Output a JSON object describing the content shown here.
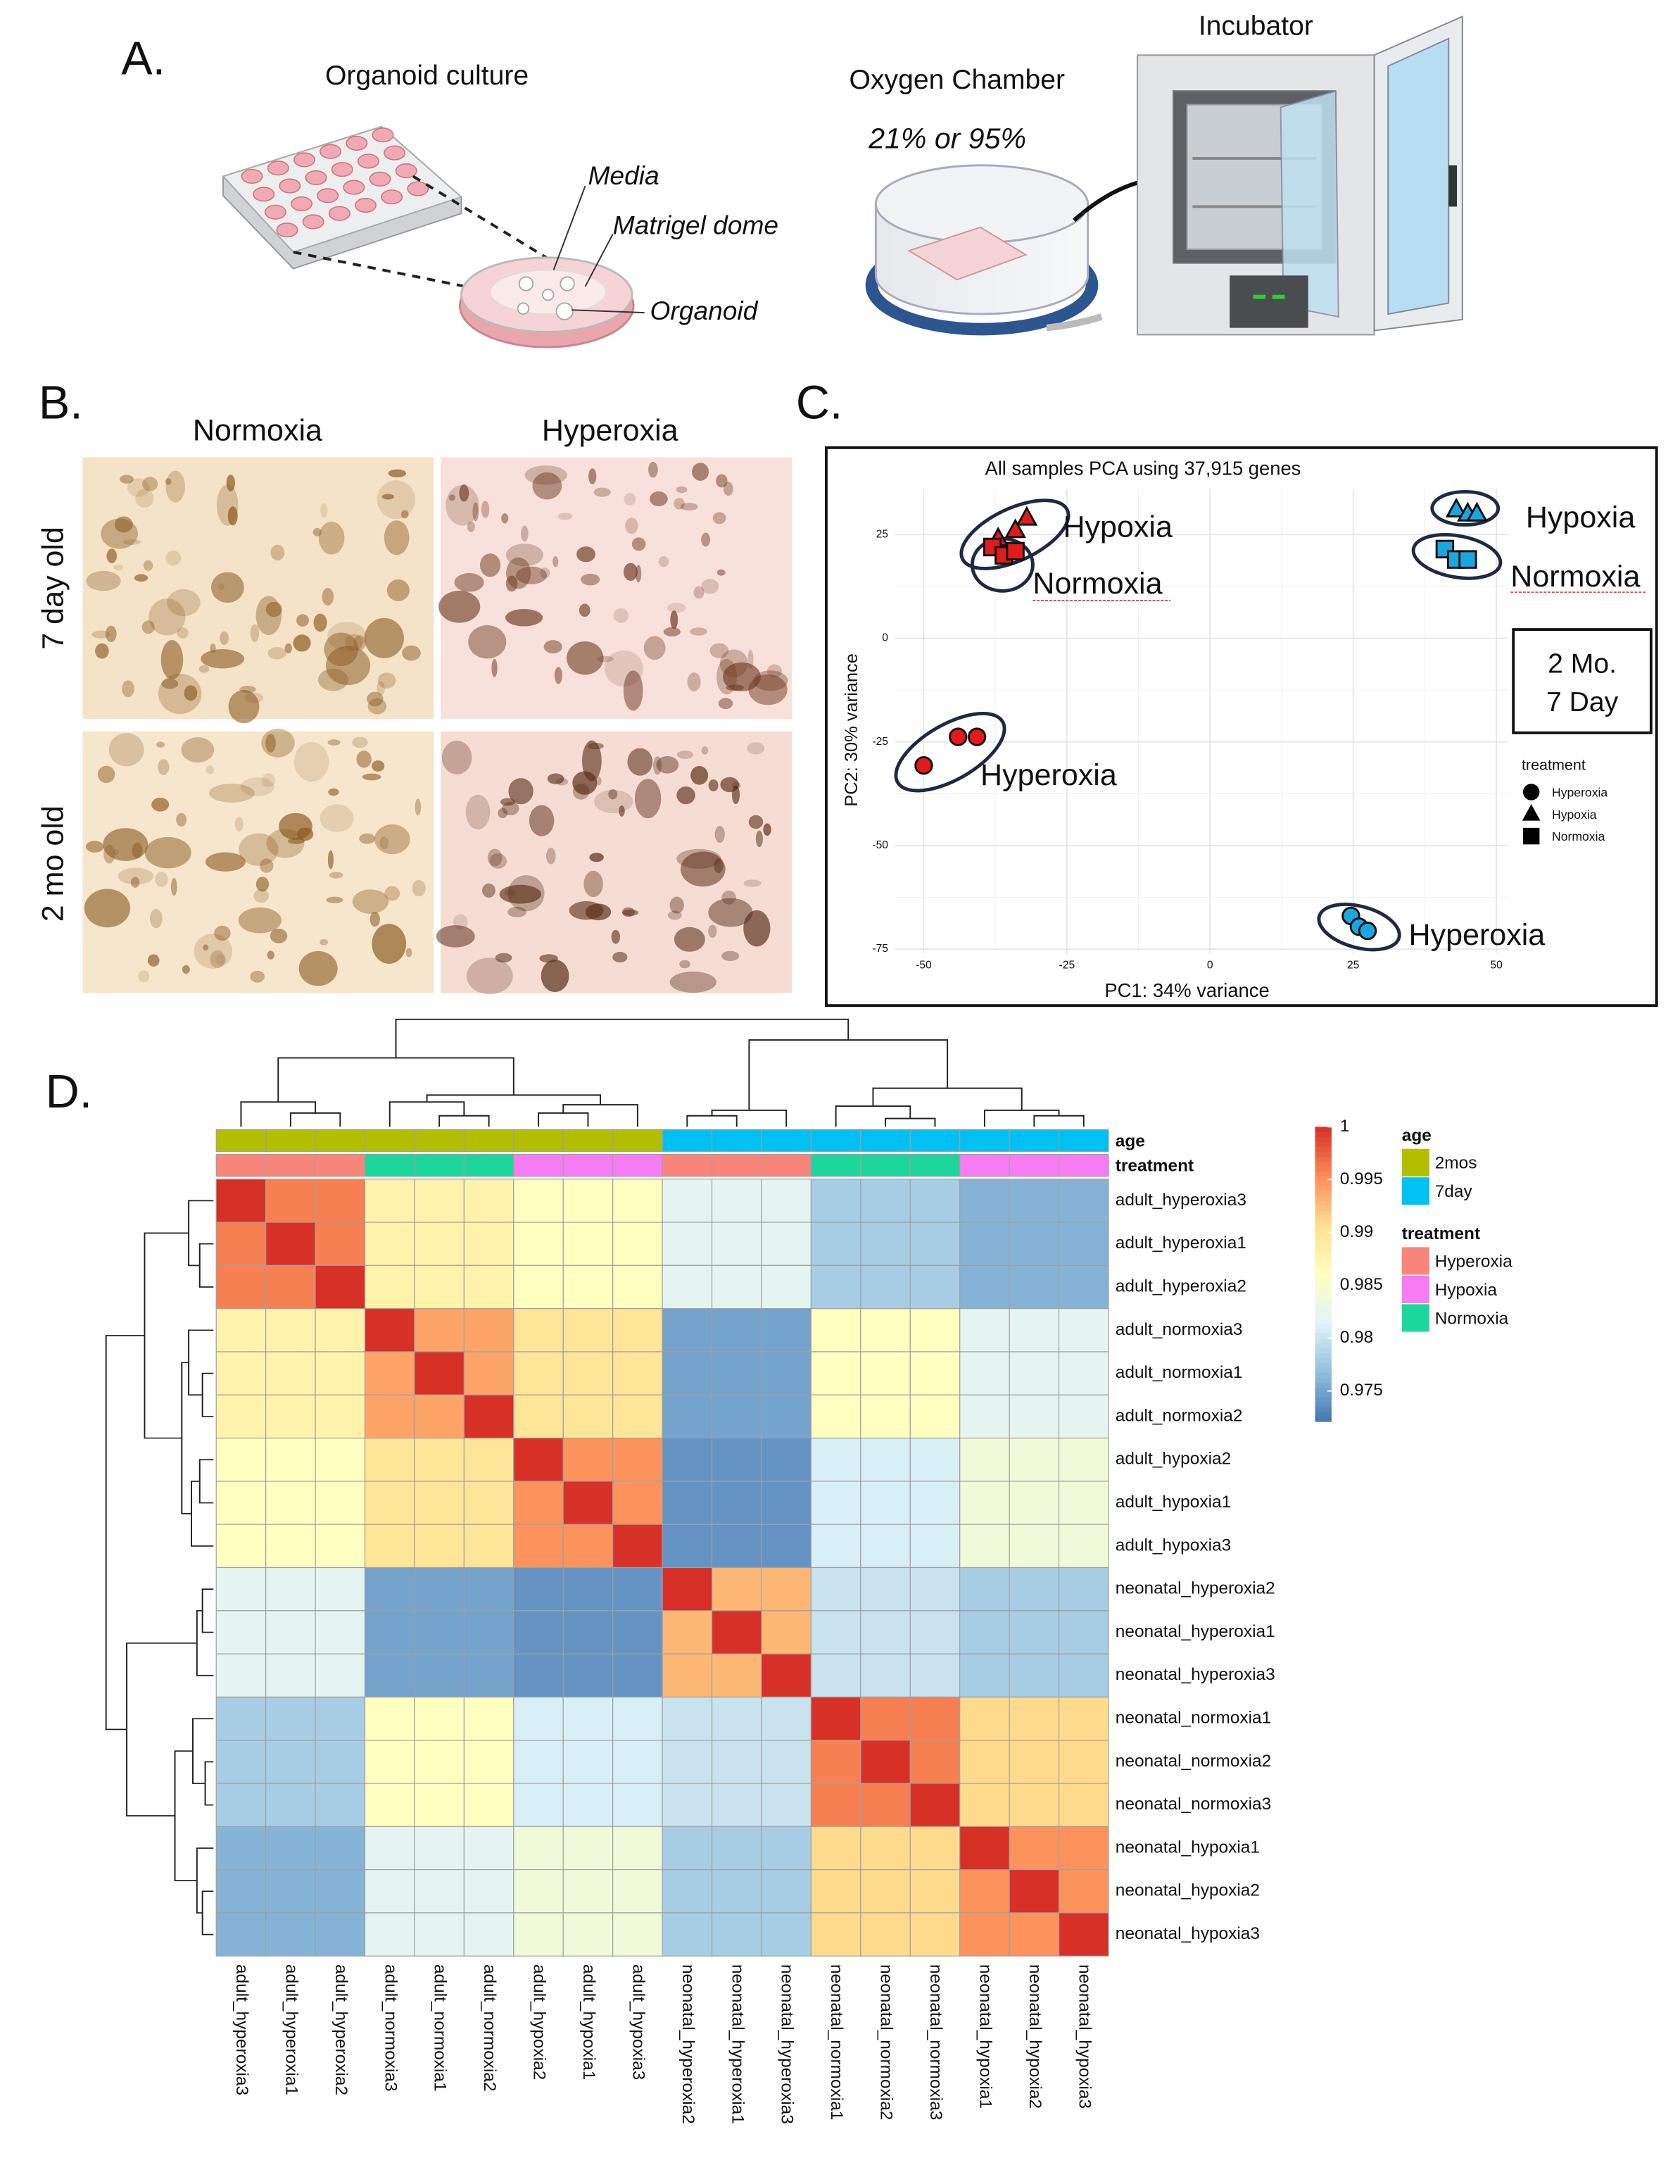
{
  "panel_labels": [
    "A.",
    "B.",
    "C.",
    "D."
  ],
  "panel_a": {
    "culture_title": "Organoid culture",
    "media": "Media",
    "dome": "Matrigel dome",
    "organoid": "Organoid",
    "chamber_title": "Oxygen Chamber",
    "oxygen": "21% or 95%",
    "incubator": "Incubator"
  },
  "panel_b": {
    "columns": [
      "Normoxia",
      "Hyperoxia"
    ],
    "rows": [
      "7 day old",
      "2 mo old"
    ]
  },
  "chart_data": [
    {
      "type": "scatter",
      "title": "All samples PCA using 37,915 genes",
      "xlabel": "PC1: 34% variance",
      "ylabel": "PC2: 30% variance",
      "xlim": [
        -55,
        52
      ],
      "ylim": [
        -76,
        36
      ],
      "xticks": [
        -50,
        -25,
        0,
        25,
        50
      ],
      "yticks": [
        -75,
        -50,
        -25,
        0,
        25
      ],
      "grid": true,
      "legend_title": "treatment",
      "series": [
        {
          "name": "Hyperoxia",
          "shape": "circle",
          "x": [
            -50,
            -44,
            -40.7,
            24.6,
            26,
            27.5
          ],
          "values": [
            -30.7,
            -23.8,
            -23.8,
            -67,
            -69.6,
            -70.6
          ],
          "colors": [
            "#e31a1c",
            "#e31a1c",
            "#e31a1c",
            "#1aa7e0",
            "#1aa7e0",
            "#1aa7e0"
          ]
        },
        {
          "name": "Hypoxia",
          "shape": "triangle",
          "x": [
            -32,
            -34,
            -37,
            43,
            45,
            46.6
          ],
          "values": [
            29,
            26,
            24,
            31,
            30,
            30
          ],
          "colors": [
            "#e31a1c",
            "#e31a1c",
            "#e31a1c",
            "#1aa7e0",
            "#1aa7e0",
            "#1aa7e0"
          ]
        },
        {
          "name": "Normoxia",
          "shape": "square",
          "x": [
            -38,
            -36,
            -34,
            41,
            43,
            45
          ],
          "values": [
            22,
            20,
            21,
            21.5,
            19,
            19
          ],
          "colors": [
            "#e31a1c",
            "#e31a1c",
            "#e31a1c",
            "#1aa7e0",
            "#1aa7e0",
            "#1aa7e0"
          ]
        }
      ],
      "group_labels": [
        "Hypoxia",
        "Normoxia",
        "Hyperoxia",
        "Hypoxia",
        "Normoxia",
        "Hyperoxia"
      ],
      "age_key": [
        {
          "label": "2 Mo.",
          "color": "#e00000"
        },
        {
          "label": "7 Day",
          "color": "#3b66b3"
        }
      ]
    },
    {
      "type": "heatmap",
      "labels": [
        "adult_hyperoxia3",
        "adult_hyperoxia1",
        "adult_hyperoxia2",
        "adult_normoxia3",
        "adult_normoxia1",
        "adult_normoxia2",
        "adult_hypoxia2",
        "adult_hypoxia1",
        "adult_hypoxia3",
        "neonatal_hyperoxia2",
        "neonatal_hyperoxia1",
        "neonatal_hyperoxia3",
        "neonatal_normoxia1",
        "neonatal_normoxia2",
        "neonatal_normoxia3",
        "neonatal_hypoxia1",
        "neonatal_hypoxia2",
        "neonatal_hypoxia3"
      ],
      "values": [
        [
          1,
          0.996,
          0.996,
          0.988,
          0.988,
          0.988,
          0.986,
          0.986,
          0.986,
          0.982,
          0.982,
          0.982,
          0.978,
          0.978,
          0.978,
          0.976,
          0.976,
          0.976
        ],
        [
          0.996,
          1,
          0.996,
          0.988,
          0.988,
          0.988,
          0.986,
          0.986,
          0.986,
          0.982,
          0.982,
          0.982,
          0.978,
          0.978,
          0.978,
          0.976,
          0.976,
          0.976
        ],
        [
          0.996,
          0.996,
          1,
          0.988,
          0.988,
          0.988,
          0.986,
          0.986,
          0.986,
          0.982,
          0.982,
          0.982,
          0.978,
          0.978,
          0.978,
          0.976,
          0.976,
          0.976
        ],
        [
          0.988,
          0.988,
          0.988,
          1,
          0.994,
          0.994,
          0.99,
          0.99,
          0.99,
          0.975,
          0.975,
          0.975,
          0.986,
          0.986,
          0.986,
          0.982,
          0.982,
          0.982
        ],
        [
          0.988,
          0.988,
          0.988,
          0.994,
          1,
          0.994,
          0.99,
          0.99,
          0.99,
          0.975,
          0.975,
          0.975,
          0.986,
          0.986,
          0.986,
          0.982,
          0.982,
          0.982
        ],
        [
          0.988,
          0.988,
          0.988,
          0.994,
          0.994,
          1,
          0.99,
          0.99,
          0.99,
          0.975,
          0.975,
          0.975,
          0.986,
          0.986,
          0.986,
          0.982,
          0.982,
          0.982
        ],
        [
          0.986,
          0.986,
          0.986,
          0.99,
          0.99,
          0.99,
          1,
          0.995,
          0.995,
          0.974,
          0.974,
          0.974,
          0.981,
          0.981,
          0.981,
          0.984,
          0.984,
          0.984
        ],
        [
          0.986,
          0.986,
          0.986,
          0.99,
          0.99,
          0.99,
          0.995,
          1,
          0.995,
          0.974,
          0.974,
          0.974,
          0.981,
          0.981,
          0.981,
          0.984,
          0.984,
          0.984
        ],
        [
          0.986,
          0.986,
          0.986,
          0.99,
          0.99,
          0.99,
          0.995,
          0.995,
          1,
          0.974,
          0.974,
          0.974,
          0.981,
          0.981,
          0.981,
          0.984,
          0.984,
          0.984
        ],
        [
          0.982,
          0.982,
          0.982,
          0.975,
          0.975,
          0.975,
          0.974,
          0.974,
          0.974,
          1,
          0.993,
          0.993,
          0.98,
          0.98,
          0.98,
          0.978,
          0.978,
          0.978
        ],
        [
          0.982,
          0.982,
          0.982,
          0.975,
          0.975,
          0.975,
          0.974,
          0.974,
          0.974,
          0.993,
          1,
          0.993,
          0.98,
          0.98,
          0.98,
          0.978,
          0.978,
          0.978
        ],
        [
          0.982,
          0.982,
          0.982,
          0.975,
          0.975,
          0.975,
          0.974,
          0.974,
          0.974,
          0.993,
          0.993,
          1,
          0.98,
          0.98,
          0.98,
          0.978,
          0.978,
          0.978
        ],
        [
          0.978,
          0.978,
          0.978,
          0.986,
          0.986,
          0.986,
          0.981,
          0.981,
          0.981,
          0.98,
          0.98,
          0.98,
          1,
          0.996,
          0.996,
          0.991,
          0.991,
          0.991
        ],
        [
          0.978,
          0.978,
          0.978,
          0.986,
          0.986,
          0.986,
          0.981,
          0.981,
          0.981,
          0.98,
          0.98,
          0.98,
          0.996,
          1,
          0.996,
          0.991,
          0.991,
          0.991
        ],
        [
          0.978,
          0.978,
          0.978,
          0.986,
          0.986,
          0.986,
          0.981,
          0.981,
          0.981,
          0.98,
          0.98,
          0.98,
          0.996,
          0.996,
          1,
          0.991,
          0.991,
          0.991
        ],
        [
          0.976,
          0.976,
          0.976,
          0.982,
          0.982,
          0.982,
          0.984,
          0.984,
          0.984,
          0.978,
          0.978,
          0.978,
          0.991,
          0.991,
          0.991,
          1,
          0.995,
          0.995
        ],
        [
          0.976,
          0.976,
          0.976,
          0.982,
          0.982,
          0.982,
          0.984,
          0.984,
          0.984,
          0.978,
          0.978,
          0.978,
          0.991,
          0.991,
          0.991,
          0.995,
          1,
          0.995
        ],
        [
          0.976,
          0.976,
          0.976,
          0.982,
          0.982,
          0.982,
          0.984,
          0.984,
          0.984,
          0.978,
          0.978,
          0.978,
          0.991,
          0.991,
          0.991,
          0.995,
          0.995,
          1
        ]
      ],
      "zlim": [
        0.9721,
        1
      ],
      "zticks": [
        0.975,
        0.98,
        0.985,
        0.99,
        0.995,
        1
      ],
      "colors": [
        "#4575B4",
        "#91BFDB",
        "#E0F3F8",
        "#FFFFBF",
        "#FEE090",
        "#FC8D59",
        "#D73027"
      ],
      "annotations": [
        {
          "name": "age",
          "levels": [
            "2mos",
            "7day"
          ],
          "colors": [
            "#B4BE00",
            "#00C1F2"
          ],
          "values": [
            "2mos",
            "2mos",
            "2mos",
            "2mos",
            "2mos",
            "2mos",
            "2mos",
            "2mos",
            "2mos",
            "7day",
            "7day",
            "7day",
            "7day",
            "7day",
            "7day",
            "7day",
            "7day",
            "7day"
          ]
        },
        {
          "name": "treatment",
          "levels": [
            "Hyperoxia",
            "Hypoxia",
            "Normoxia"
          ],
          "colors": [
            "#F8857A",
            "#F57CF2",
            "#1DD69B"
          ],
          "values": [
            "Hyperoxia",
            "Hyperoxia",
            "Hyperoxia",
            "Normoxia",
            "Normoxia",
            "Normoxia",
            "Hypoxia",
            "Hypoxia",
            "Hypoxia",
            "Hyperoxia",
            "Hyperoxia",
            "Hyperoxia",
            "Normoxia",
            "Normoxia",
            "Normoxia",
            "Hypoxia",
            "Hypoxia",
            "Hypoxia"
          ]
        }
      ]
    }
  ]
}
